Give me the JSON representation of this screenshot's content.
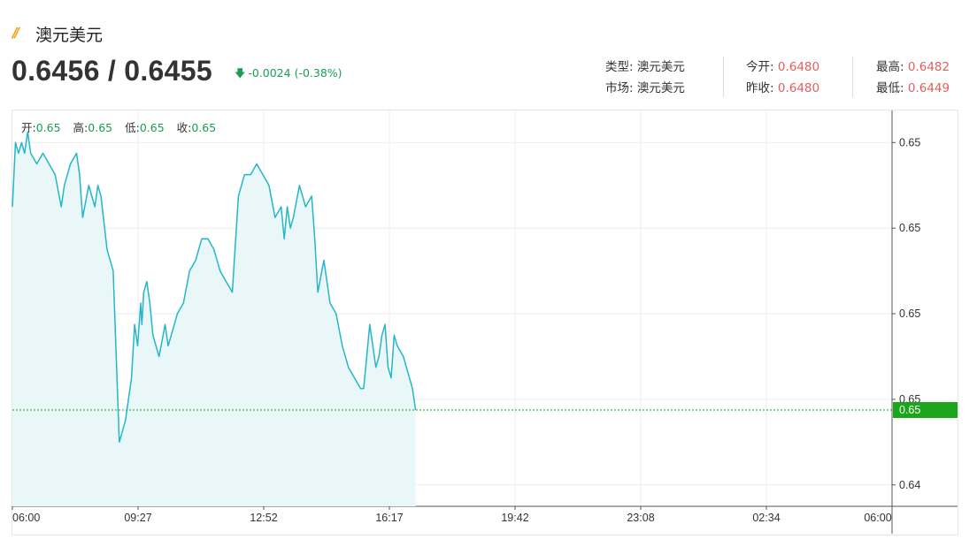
{
  "header": {
    "logo": "//",
    "title": "澳元美元",
    "price": "0.6456 / 0.6455",
    "change": "-0.0024 (-0.38%)"
  },
  "stats": {
    "type_label": "类型:",
    "type_value": "澳元美元",
    "market_label": "市场:",
    "market_value": "澳元美元",
    "open_label": "今开:",
    "open_value": "0.6480",
    "prev_close_label": "昨收:",
    "prev_close_value": "0.6480",
    "high_label": "最高:",
    "high_value": "0.6482",
    "low_label": "最低:",
    "low_value": "0.6449"
  },
  "ohlc": {
    "open_label": "开:",
    "open_value": "0.65",
    "high_label": "高:",
    "high_value": "0.65",
    "low_label": "低:",
    "low_value": "0.65",
    "close_label": "收:",
    "close_value": "0.65"
  },
  "colors": {
    "line": "#25b6c9",
    "area": "#e9f7f8",
    "current": "#1aa51a",
    "grid": "#eeeeee"
  },
  "chart_data": {
    "type": "area",
    "title": "",
    "xlabel": "",
    "ylabel": "",
    "x_tick_labels": [
      "06:00",
      "09:27",
      "12:52",
      "16:17",
      "19:42",
      "23:08",
      "02:34",
      "06:00"
    ],
    "y_tick_labels": [
      "0.65",
      "0.65",
      "0.65",
      "0.65",
      "0.64"
    ],
    "y_tick_values": [
      0.648,
      0.6472,
      0.6464,
      0.6456,
      0.6448
    ],
    "ylim": [
      0.6446,
      0.6483
    ],
    "x_range": [
      0,
      1440
    ],
    "current_value": 0.6455,
    "current_label": "0.65",
    "grid": true,
    "series": [
      {
        "x": [
          0,
          5,
          10,
          15,
          20,
          25,
          30,
          40,
          50,
          60,
          70,
          80,
          85,
          95,
          105,
          110,
          115,
          125,
          135,
          140,
          145,
          155,
          165,
          175,
          185,
          195,
          200,
          205,
          210,
          212,
          215,
          220,
          225,
          230,
          240,
          250,
          255,
          260,
          270,
          280,
          290,
          300,
          310,
          320,
          330,
          340,
          350,
          360,
          370,
          380,
          390,
          400,
          410,
          420,
          430,
          440,
          445,
          450,
          455,
          460,
          470,
          480,
          490,
          495,
          500,
          510,
          520,
          530,
          540,
          550,
          560,
          570,
          575,
          580,
          585,
          590,
          595,
          600,
          605,
          610,
          615,
          620,
          625,
          630,
          640,
          645,
          650,
          655,
          660
        ],
        "y": [
          0.6474,
          0.648,
          0.6479,
          0.648,
          0.6479,
          0.6481,
          0.6479,
          0.6478,
          0.6479,
          0.6478,
          0.6477,
          0.6474,
          0.6476,
          0.6478,
          0.6479,
          0.6477,
          0.6473,
          0.6476,
          0.6474,
          0.6476,
          0.6475,
          0.647,
          0.6468,
          0.6452,
          0.6454,
          0.6458,
          0.6463,
          0.6461,
          0.6465,
          0.6463,
          0.6466,
          0.6467,
          0.6465,
          0.6462,
          0.646,
          0.6463,
          0.6461,
          0.6462,
          0.6464,
          0.6465,
          0.6468,
          0.6469,
          0.6471,
          0.6471,
          0.647,
          0.6468,
          0.6467,
          0.6466,
          0.6475,
          0.6477,
          0.6477,
          0.6478,
          0.6477,
          0.6476,
          0.6473,
          0.6474,
          0.6471,
          0.6474,
          0.6472,
          0.6473,
          0.6476,
          0.6474,
          0.6475,
          0.6471,
          0.6466,
          0.6469,
          0.6465,
          0.6464,
          0.6461,
          0.6459,
          0.6458,
          0.6457,
          0.6457,
          0.646,
          0.6463,
          0.6461,
          0.6459,
          0.646,
          0.6462,
          0.6463,
          0.6459,
          0.6458,
          0.6462,
          0.6461,
          0.646,
          0.6459,
          0.6458,
          0.6457,
          0.6455
        ]
      }
    ]
  }
}
